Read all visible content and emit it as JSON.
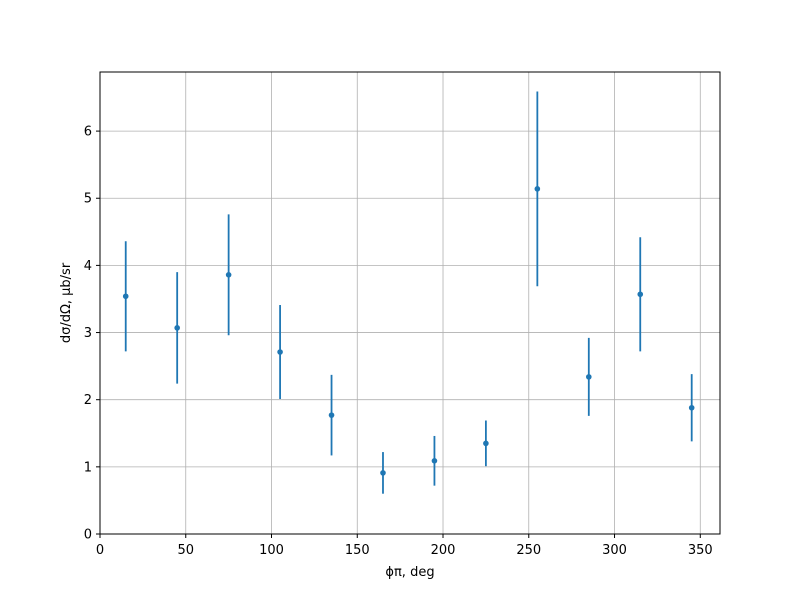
{
  "chart_data": {
    "type": "errorbar",
    "xlabel": "ϕπ, deg",
    "ylabel": "dσ/dΩ, μb/sr",
    "x": [
      15,
      45,
      75,
      105,
      135,
      165,
      195,
      225,
      255,
      285,
      315,
      345
    ],
    "series": [
      {
        "color": "#1f77b4",
        "values": [
          3.54,
          3.07,
          3.86,
          2.71,
          1.77,
          0.91,
          1.09,
          1.35,
          5.14,
          2.34,
          3.57,
          1.88
        ],
        "errors": [
          0.82,
          0.83,
          0.9,
          0.7,
          0.6,
          0.31,
          0.37,
          0.34,
          1.45,
          0.58,
          0.85,
          0.5
        ]
      }
    ],
    "xlim": [
      0,
      361.5
    ],
    "ylim": [
      0,
      6.88
    ],
    "xticks": [
      0,
      50,
      100,
      150,
      200,
      250,
      300,
      350
    ],
    "yticks": [
      0,
      1,
      2,
      3,
      4,
      5,
      6
    ],
    "grid": true
  }
}
